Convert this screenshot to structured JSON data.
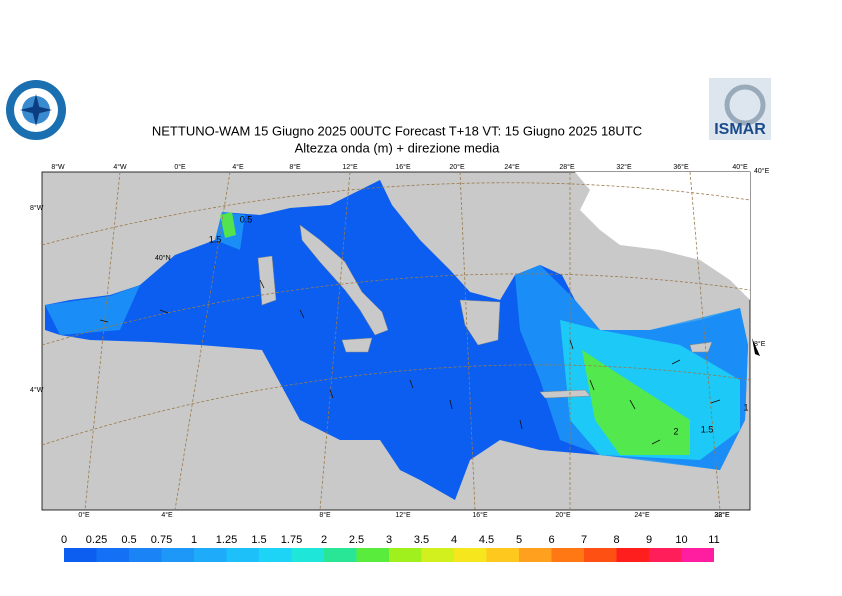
{
  "header": {
    "title": "NETTUNO-WAM  15   Giugno  2025 00UTC Forecast T+18 VT: 15   Giugno  2025 18UTC",
    "subtitle": "Altezza onda (m) + direzione media",
    "logo_text": "ISMAR"
  },
  "graticule": {
    "top": [
      "8°W",
      "4°W",
      "0°E",
      "4°E",
      "8°E",
      "12°E",
      "16°E",
      "20°E",
      "24°E",
      "28°E",
      "32°E",
      "36°E",
      "40°E"
    ],
    "left": [
      "8°W",
      "40°N",
      "4°W"
    ],
    "bottom": [
      "0°E",
      "4°E",
      "8°E",
      "12°E",
      "16°E",
      "20°E",
      "24°E",
      "28°E",
      "32°E"
    ],
    "right": [
      "40°E",
      "8°E"
    ]
  },
  "contour_labels": [
    "1.5",
    "0.5",
    "2",
    "1.5",
    "1"
  ],
  "colorbar": {
    "labels": [
      "0",
      "0.25",
      "0.5",
      "0.75",
      "1",
      "1.25",
      "1.5",
      "1.75",
      "2",
      "2.5",
      "3",
      "3.5",
      "4",
      "4.5",
      "5",
      "6",
      "7",
      "8",
      "9",
      "10",
      "11"
    ],
    "colors": [
      "#0b5ef0",
      "#1470f4",
      "#1a84f6",
      "#1e98f8",
      "#1eacfa",
      "#1ec0fa",
      "#1ed4f6",
      "#1ee6d8",
      "#28e696",
      "#5aec3c",
      "#a0f01e",
      "#d2f01e",
      "#f5e61e",
      "#ffc81e",
      "#ffa01e",
      "#ff7814",
      "#ff5014",
      "#ff1e1e",
      "#ff1e5a",
      "#ff1ea0"
    ]
  }
}
